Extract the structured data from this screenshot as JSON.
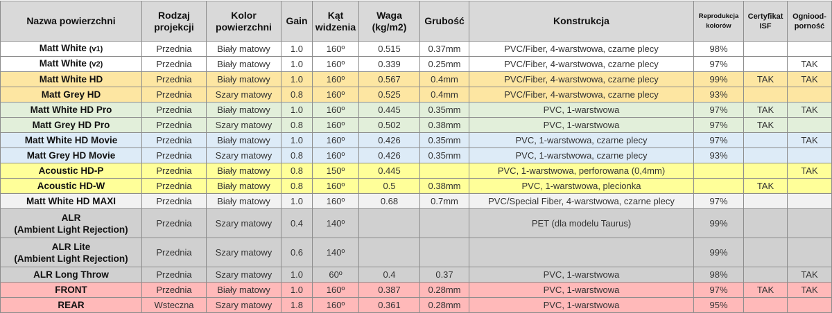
{
  "headers": [
    "Nazwa powierzchni",
    "Rodzaj projekcji",
    "Kolor powierzchni",
    "Gain",
    "Kąt widzenia",
    "Waga (kg/m2)",
    "Grubość",
    "Konstrukcja",
    "Reprodukcja kolorów",
    "Certyfikat ISF",
    "Ogniood-porność"
  ],
  "colors": {
    "header": "#d9d9d9",
    "white": "#ffffff",
    "orange": "#fde6a2",
    "green": "#e2efda",
    "blue": "#ddebf7",
    "yellow": "#ffff99",
    "lightgrey": "#f2f2f2",
    "grey": "#d0d0d0",
    "pink": "#ffb9b9"
  },
  "rows": [
    {
      "name": "Matt White",
      "suffix": "(v1)",
      "color": "white",
      "cells": [
        "Przednia",
        "Biały matowy",
        "1.0",
        "160º",
        "0.515",
        "0.37mm",
        "PVC/Fiber, 4-warstwowa, czarne plecy",
        "98%",
        "",
        ""
      ]
    },
    {
      "name": "Matt White",
      "suffix": "(v2)",
      "color": "white",
      "cells": [
        "Przednia",
        "Biały matowy",
        "1.0",
        "160º",
        "0.339",
        "0.25mm",
        "PVC/Fiber, 4-warstwowa, czarne plecy",
        "97%",
        "",
        "TAK"
      ]
    },
    {
      "name": "Matt White HD",
      "color": "orange",
      "cells": [
        "Przednia",
        "Biały matowy",
        "1.0",
        "160º",
        "0.567",
        "0.4mm",
        "PVC/Fiber, 4-warstwowa, czarne plecy",
        "99%",
        "TAK",
        "TAK"
      ]
    },
    {
      "name": "Matt Grey HD",
      "color": "orange",
      "cells": [
        "Przednia",
        "Szary matowy",
        "0.8",
        "160º",
        "0.525",
        "0.4mm",
        "PVC/Fiber, 4-warstwowa, czarne plecy",
        "93%",
        "",
        ""
      ]
    },
    {
      "name": "Matt White HD Pro",
      "color": "green",
      "cells": [
        "Przednia",
        "Biały matowy",
        "1.0",
        "160º",
        "0.445",
        "0.35mm",
        "PVC, 1-warstwowa",
        "97%",
        "TAK",
        "TAK"
      ]
    },
    {
      "name": "Matt Grey HD Pro",
      "color": "green",
      "cells": [
        "Przednia",
        "Szary matowy",
        "0.8",
        "160º",
        "0.502",
        "0.38mm",
        "PVC, 1-warstwowa",
        "97%",
        "TAK",
        ""
      ]
    },
    {
      "name": "Matt White HD Movie",
      "color": "blue",
      "cells": [
        "Przednia",
        "Biały matowy",
        "1.0",
        "160º",
        "0.426",
        "0.35mm",
        "PVC, 1-warstwowa, czarne plecy",
        "97%",
        "",
        "TAK"
      ]
    },
    {
      "name": "Matt Grey HD Movie",
      "color": "blue",
      "cells": [
        "Przednia",
        "Szary matowy",
        "0.8",
        "160º",
        "0.426",
        "0.35mm",
        "PVC, 1-warstwowa, czarne plecy",
        "93%",
        "",
        ""
      ]
    },
    {
      "name": "Acoustic HD-P",
      "color": "yellow",
      "cells": [
        "Przednia",
        "Biały matowy",
        "0.8",
        "150º",
        "0.445",
        "",
        "PVC, 1-warstwowa, perforowana (0,4mm)",
        "",
        "",
        "TAK"
      ]
    },
    {
      "name": "Acoustic HD-W",
      "color": "yellow",
      "cells": [
        "Przednia",
        "Biały matowy",
        "0.8",
        "160º",
        "0.5",
        "0.38mm",
        "PVC, 1-warstwowa, plecionka",
        "",
        "TAK",
        ""
      ]
    },
    {
      "name": "Matt White HD MAXI",
      "color": "lightgrey",
      "cells": [
        "Przednia",
        "Biały matowy",
        "1.0",
        "160º",
        "0.68",
        "0.7mm",
        "PVC/Special Fiber, 4-warstwowa, czarne plecy",
        "97%",
        "",
        ""
      ]
    },
    {
      "name": "ALR",
      "name2": "(Ambient Light Rejection)",
      "color": "grey",
      "cells": [
        "Przednia",
        "Szary matowy",
        "0.4",
        "140º",
        "",
        "",
        "PET (dla modelu Taurus)",
        "99%",
        "",
        ""
      ]
    },
    {
      "name": "ALR Lite",
      "name2": "(Ambient Light Rejection)",
      "color": "grey",
      "cells": [
        "Przednia",
        "Szary matowy",
        "0.6",
        "140º",
        "",
        "",
        "",
        "99%",
        "",
        ""
      ]
    },
    {
      "name": "ALR Long Throw",
      "color": "grey",
      "cells": [
        "Przednia",
        "Szary matowy",
        "1.0",
        "60º",
        "0.4",
        "0.37",
        "PVC, 1-warstwowa",
        "98%",
        "",
        "TAK"
      ]
    },
    {
      "name": "FRONT",
      "color": "pink",
      "cells": [
        "Przednia",
        "Biały matowy",
        "1.0",
        "160º",
        "0.387",
        "0.28mm",
        "PVC, 1-warstwowa",
        "97%",
        "TAK",
        "TAK"
      ]
    },
    {
      "name": "REAR",
      "color": "pink",
      "cells": [
        "Wsteczna",
        "Szary matowy",
        "1.8",
        "160º",
        "0.361",
        "0.28mm",
        "PVC, 1-warstwowa",
        "95%",
        "",
        ""
      ]
    }
  ]
}
